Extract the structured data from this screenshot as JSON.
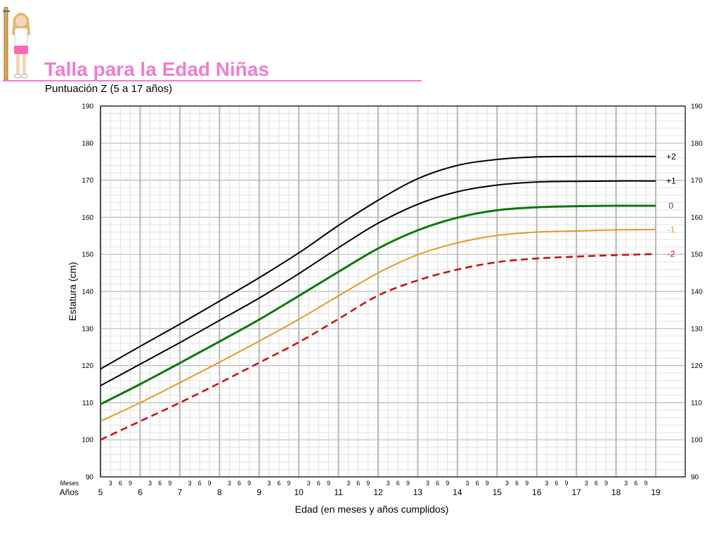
{
  "title": "Talla para la Edad Niñas",
  "subtitle": "Puntuación Z (5 a 17 años)",
  "chart_data": {
    "type": "line",
    "title": "Talla para la Edad Niñas",
    "subtitle": "Puntuación Z (5 a 17 años)",
    "xlabel": "Edad (en meses y años cumplidos)",
    "ylabel": "Estatura (cm)",
    "xlim": [
      5,
      19
    ],
    "ylim": [
      90,
      190
    ],
    "grid": true,
    "y_ticks": [
      90,
      100,
      110,
      120,
      130,
      140,
      150,
      160,
      170,
      180,
      190
    ],
    "x_ticks": [
      5,
      6,
      7,
      8,
      9,
      10,
      11,
      12,
      13,
      14,
      15,
      16,
      17,
      18,
      19
    ],
    "month_ticks": [
      "3",
      "6",
      "9"
    ],
    "months_row_label": "Meses",
    "years_row_label": "Años",
    "x": [
      5,
      6,
      7,
      8,
      9,
      10,
      11,
      12,
      13,
      14,
      15,
      16,
      17,
      18,
      19
    ],
    "series": [
      {
        "name": "+2",
        "color": "#000000",
        "dashed": false,
        "values": [
          119.1,
          125.2,
          131.2,
          137.4,
          143.7,
          150.4,
          157.8,
          164.6,
          170.4,
          174.0,
          175.6,
          176.3,
          176.4,
          176.4,
          176.4
        ]
      },
      {
        "name": "+1",
        "color": "#000000",
        "dashed": false,
        "values": [
          114.6,
          120.4,
          126.2,
          132.2,
          138.2,
          144.8,
          151.8,
          158.4,
          163.5,
          166.9,
          168.7,
          169.5,
          169.7,
          169.8,
          169.8
        ]
      },
      {
        "name": "0",
        "color": "#0a7a0a",
        "dashed": false,
        "values": [
          109.6,
          115.0,
          120.7,
          126.5,
          132.4,
          138.8,
          145.3,
          151.6,
          156.5,
          159.9,
          161.9,
          162.7,
          163.0,
          163.1,
          163.1
        ]
      },
      {
        "name": "-1",
        "color": "#e39a25",
        "dashed": false,
        "values": [
          105.0,
          110.0,
          115.4,
          120.9,
          126.6,
          132.5,
          138.8,
          145.0,
          149.9,
          153.1,
          155.1,
          156.0,
          156.3,
          156.6,
          156.7
        ]
      },
      {
        "name": "-2",
        "color": "#cc1111",
        "dashed": true,
        "values": [
          100.0,
          105.0,
          110.0,
          115.3,
          120.8,
          126.3,
          132.6,
          138.9,
          143.0,
          145.9,
          147.9,
          148.9,
          149.4,
          149.8,
          150.1
        ]
      }
    ]
  }
}
